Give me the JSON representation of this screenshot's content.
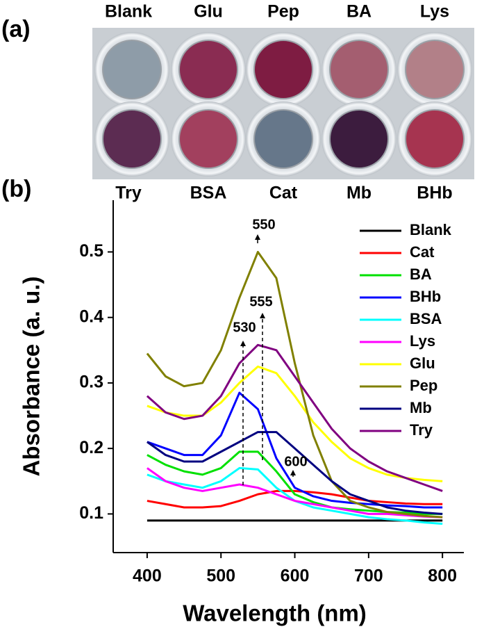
{
  "panel_a": {
    "label": "(a)",
    "top_labels": [
      "Blank",
      "Glu",
      "Pep",
      "BA",
      "Lys"
    ],
    "bottom_labels": [
      "Try",
      "BSA",
      "Cat",
      "Mb",
      "BHb"
    ]
  },
  "chart_data": {
    "type": "line",
    "panel_label": "(b)",
    "x_label": "Wavelength (nm)",
    "y_label": "Absorbance (a. u.)",
    "x": [
      400,
      425,
      450,
      475,
      500,
      525,
      550,
      575,
      600,
      625,
      650,
      675,
      700,
      725,
      750,
      775,
      800
    ],
    "series": [
      {
        "name": "Blank",
        "color": "#000000",
        "values": [
          0.09,
          0.09,
          0.09,
          0.09,
          0.09,
          0.09,
          0.09,
          0.09,
          0.09,
          0.09,
          0.09,
          0.09,
          0.09,
          0.09,
          0.09,
          0.09,
          0.09
        ]
      },
      {
        "name": "Cat",
        "color": "#ff0000",
        "values": [
          0.12,
          0.115,
          0.11,
          0.11,
          0.112,
          0.12,
          0.13,
          0.135,
          0.135,
          0.133,
          0.13,
          0.125,
          0.12,
          0.118,
          0.116,
          0.115,
          0.115
        ]
      },
      {
        "name": "BA",
        "color": "#00e000",
        "values": [
          0.19,
          0.175,
          0.165,
          0.16,
          0.17,
          0.195,
          0.195,
          0.165,
          0.13,
          0.118,
          0.11,
          0.107,
          0.105,
          0.103,
          0.102,
          0.1,
          0.1
        ]
      },
      {
        "name": "BHb",
        "color": "#0000ff",
        "values": [
          0.21,
          0.2,
          0.19,
          0.19,
          0.22,
          0.285,
          0.26,
          0.185,
          0.14,
          0.127,
          0.12,
          0.117,
          0.115,
          0.113,
          0.112,
          0.11,
          0.11
        ]
      },
      {
        "name": "BSA",
        "color": "#00ffff",
        "values": [
          0.16,
          0.15,
          0.145,
          0.14,
          0.15,
          0.17,
          0.168,
          0.14,
          0.12,
          0.11,
          0.105,
          0.1,
          0.095,
          0.092,
          0.09,
          0.087,
          0.085
        ]
      },
      {
        "name": "Lys",
        "color": "#ff00ff",
        "values": [
          0.17,
          0.15,
          0.14,
          0.135,
          0.14,
          0.145,
          0.14,
          0.13,
          0.12,
          0.115,
          0.11,
          0.105,
          0.1,
          0.1,
          0.098,
          0.096,
          0.095
        ]
      },
      {
        "name": "Glu",
        "color": "#ffff00",
        "values": [
          0.265,
          0.255,
          0.25,
          0.25,
          0.27,
          0.3,
          0.325,
          0.315,
          0.28,
          0.24,
          0.21,
          0.185,
          0.17,
          0.16,
          0.155,
          0.152,
          0.15
        ]
      },
      {
        "name": "Pep",
        "color": "#808000",
        "values": [
          0.345,
          0.31,
          0.295,
          0.3,
          0.35,
          0.43,
          0.5,
          0.46,
          0.33,
          0.22,
          0.15,
          0.12,
          0.11,
          0.103,
          0.1,
          0.097,
          0.095
        ]
      },
      {
        "name": "Mb",
        "color": "#000080",
        "values": [
          0.21,
          0.19,
          0.18,
          0.18,
          0.195,
          0.21,
          0.225,
          0.225,
          0.2,
          0.175,
          0.15,
          0.13,
          0.12,
          0.11,
          0.105,
          0.102,
          0.1
        ]
      },
      {
        "name": "Try",
        "color": "#800080",
        "values": [
          0.28,
          0.255,
          0.245,
          0.25,
          0.28,
          0.33,
          0.358,
          0.35,
          0.31,
          0.27,
          0.23,
          0.2,
          0.18,
          0.165,
          0.155,
          0.145,
          0.135
        ]
      }
    ],
    "xlim": [
      354,
      829
    ],
    "ylim": [
      0.041,
      0.579
    ],
    "xticks": [
      400,
      500,
      600,
      700,
      800
    ],
    "yticks": [
      0.1,
      0.2,
      0.3,
      0.4,
      0.5
    ],
    "legend": "upper right",
    "annotations": [
      "550",
      "555",
      "530",
      "600"
    ]
  }
}
